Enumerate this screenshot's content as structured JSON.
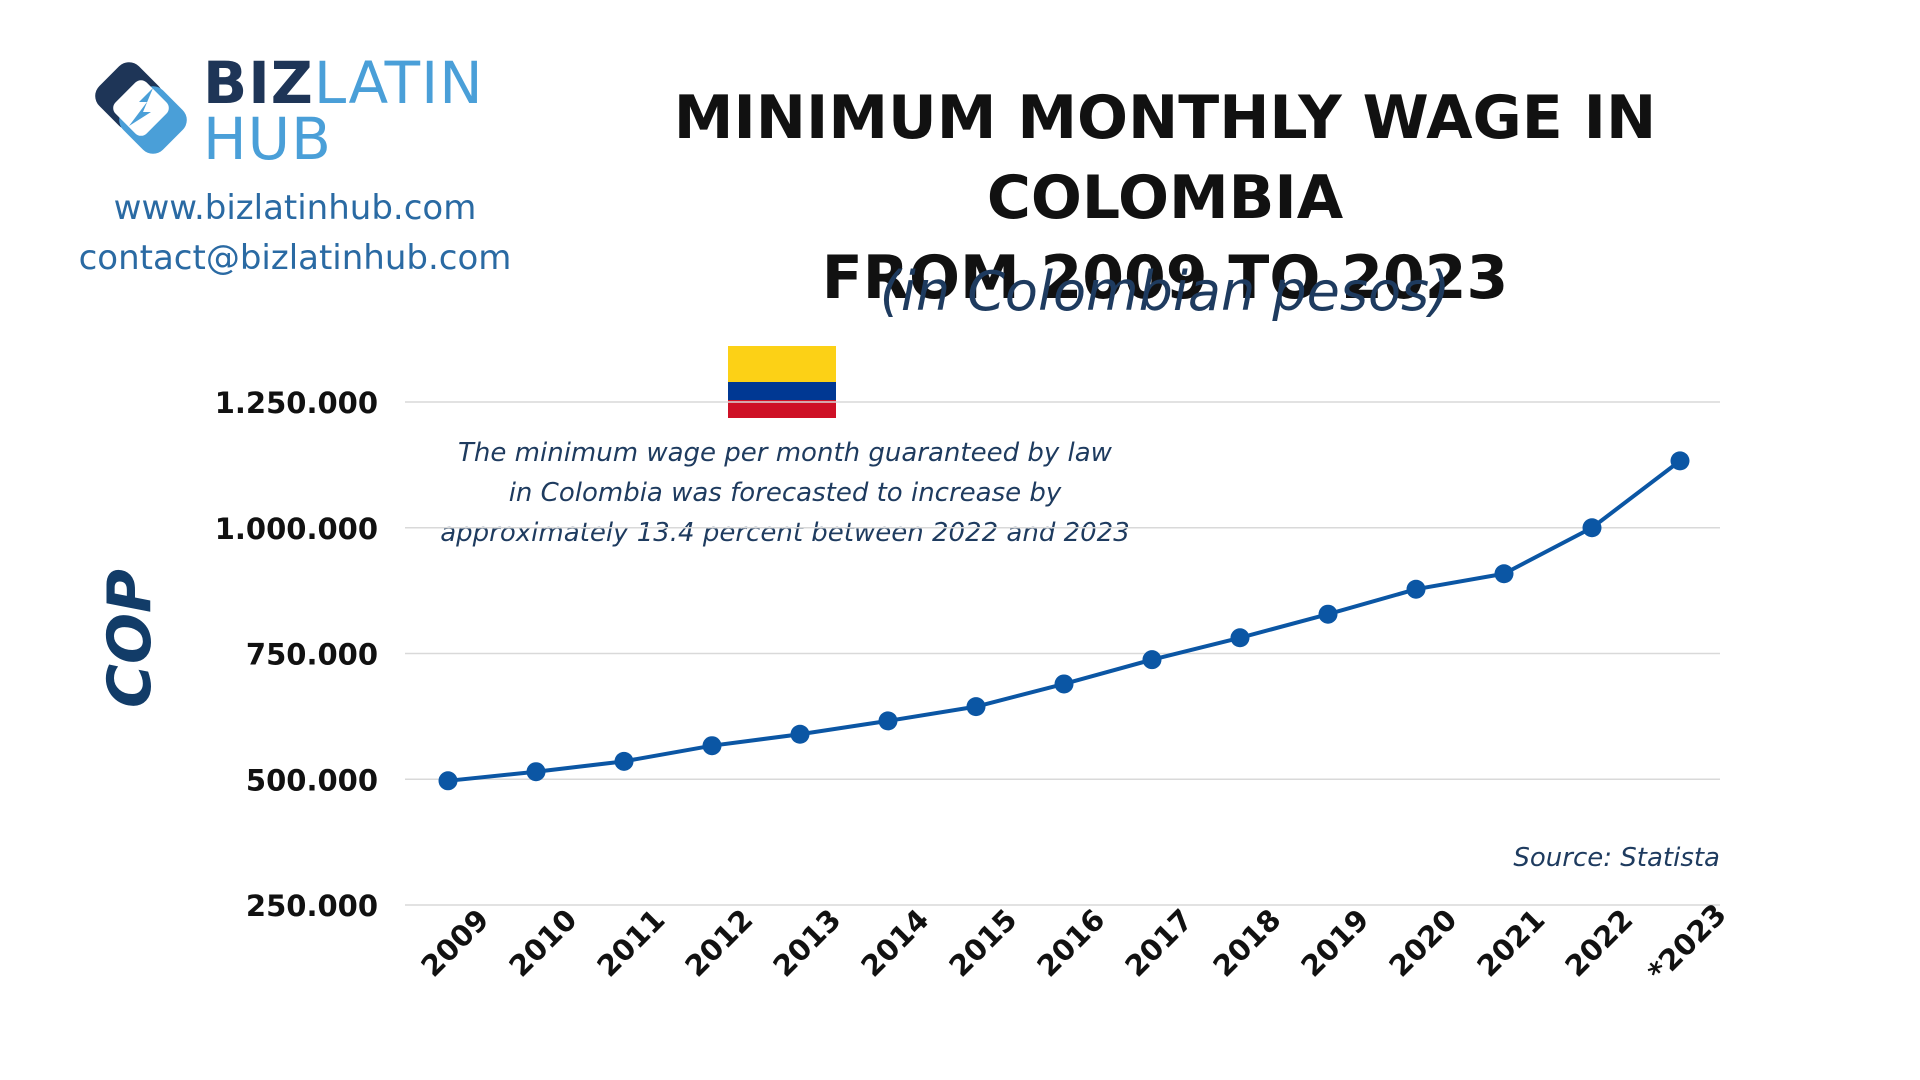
{
  "brand": {
    "biz": "BIZ",
    "latin": "LATIN",
    "hub": "HUB",
    "website": "www.bizlatinhub.com",
    "email": "contact@bizlatinhub.com"
  },
  "header": {
    "title_line1": "MINIMUM MONTHLY WAGE IN COLOMBIA",
    "title_line2": "FROM 2009 TO 2023",
    "subtitle": "(in Colombian pesos)"
  },
  "annotation": {
    "line1": "The minimum wage per month guaranteed by law",
    "line2": "in Colombia was forecasted to increase by",
    "line3": "approximately 13.4 percent between 2022 and 2023"
  },
  "source": "Source: Statista",
  "colors": {
    "line": "#0b56a4",
    "grid": "#d9d9d9",
    "title": "#111111",
    "accent": "#1e3b5f"
  },
  "chart_data": {
    "type": "line",
    "title": "MINIMUM MONTHLY WAGE IN COLOMBIA FROM 2009 TO 2023",
    "subtitle": "(in Colombian pesos)",
    "ylabel": "COP",
    "xlabel": "",
    "categories": [
      "2009",
      "2010",
      "2011",
      "2012",
      "2013",
      "2014",
      "2015",
      "2016",
      "2017",
      "2018",
      "2019",
      "2020",
      "2021",
      "2022",
      "*2023"
    ],
    "values": [
      496900,
      515000,
      535600,
      566700,
      589500,
      616000,
      644350,
      689455,
      737717,
      781242,
      828116,
      877803,
      908526,
      1000000,
      1133000
    ],
    "ylim": [
      250000,
      1250000
    ],
    "yticks": [
      250000,
      500000,
      750000,
      1000000,
      1250000
    ],
    "ytick_labels": [
      "250.000",
      "500.000",
      "750.000",
      "1.000.000",
      "1.250.000"
    ],
    "grid": true,
    "legend": "none"
  }
}
